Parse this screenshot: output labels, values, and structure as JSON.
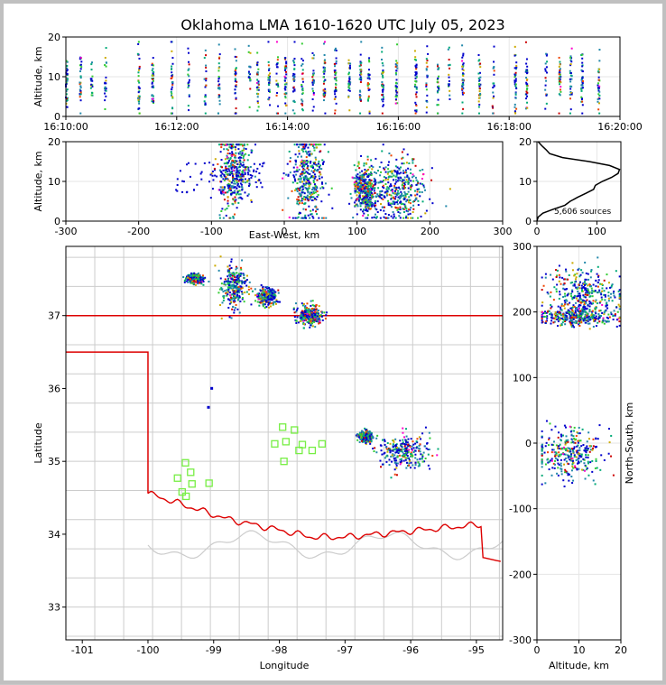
{
  "figure": {
    "title": "Oklahoma LMA 1610-1620 UTC July 05, 2023",
    "source_count_label": "5,606 sources"
  },
  "chart_data": [
    {
      "type": "scatter",
      "id": "altitude_time",
      "ylabel": "Altitude, km",
      "xlabel": "",
      "xlim": [
        "16:10:00",
        "16:20:00"
      ],
      "ylim": [
        0,
        20
      ],
      "x_ticks": [
        "16:10:00",
        "16:12:00",
        "16:14:00",
        "16:16:00",
        "16:18:00",
        "16:20:00"
      ],
      "y_ticks": [
        0,
        10,
        20
      ],
      "grid": true,
      "bursts_minutes": [
        0.0,
        0.25,
        0.45,
        0.7,
        1.3,
        1.55,
        1.9,
        2.2,
        2.5,
        2.75,
        3.05,
        3.3,
        3.45,
        3.65,
        3.8,
        3.95,
        4.1,
        4.25,
        4.45,
        4.65,
        4.85,
        5.1,
        5.3,
        5.45,
        5.7,
        5.95,
        6.3,
        6.5,
        6.7,
        6.9,
        7.15,
        7.45,
        7.7,
        8.1,
        8.3,
        8.65,
        8.9,
        9.1,
        9.3,
        9.6
      ]
    },
    {
      "type": "scatter",
      "id": "altitude_eastwest",
      "xlabel": "East-West, km",
      "ylabel": "Altitude, km",
      "xlim": [
        -300,
        300
      ],
      "ylim": [
        0,
        20
      ],
      "x_ticks": [
        -300,
        -200,
        -100,
        0,
        100,
        200,
        300
      ],
      "y_ticks": [
        0,
        10,
        20
      ],
      "clusters": [
        {
          "x": -70,
          "x_spread": 12,
          "alt": 12,
          "alt_spread": 5
        },
        {
          "x": 30,
          "x_spread": 12,
          "alt": 11,
          "alt_spread": 6
        },
        {
          "x": 155,
          "x_spread": 20,
          "alt": 8,
          "alt_spread": 4
        },
        {
          "x": 110,
          "x_spread": 8,
          "alt": 8,
          "alt_spread": 3
        }
      ]
    },
    {
      "type": "line",
      "id": "altitude_histogram",
      "xlim": [
        0,
        140
      ],
      "ylim": [
        0,
        20
      ],
      "x_ticks": [
        0,
        100
      ],
      "y_ticks": [
        0,
        10,
        20
      ],
      "alt": [
        0,
        1,
        2,
        3,
        4,
        5,
        6,
        7,
        8,
        9,
        10,
        11,
        12,
        13,
        14,
        15,
        16,
        17,
        18,
        19,
        20
      ],
      "count": [
        0,
        2,
        10,
        30,
        45,
        55,
        70,
        85,
        90,
        95,
        110,
        120,
        135,
        138,
        125,
        85,
        45,
        25,
        15,
        8,
        2
      ]
    },
    {
      "type": "scatter",
      "id": "plan_view",
      "xlabel": "Longitude",
      "ylabel": "Latitude",
      "xlim": [
        -101.25,
        -94.6
      ],
      "ylim": [
        32.55,
        37.95
      ],
      "x_ticks": [
        -101,
        -100,
        -99,
        -98,
        -97,
        -96,
        -95
      ],
      "y_ticks": [
        33,
        34,
        35,
        36,
        37
      ],
      "clusters": [
        {
          "lon": -98.7,
          "lat": 37.4,
          "slon": 0.1,
          "slat": 0.15
        },
        {
          "lon": -97.55,
          "lat": 37.02,
          "slon": 0.1,
          "slat": 0.07
        },
        {
          "lon": -99.3,
          "lat": 37.52,
          "slon": 0.07,
          "slat": 0.03
        },
        {
          "lon": -98.2,
          "lat": 37.28,
          "slon": 0.07,
          "slat": 0.06
        },
        {
          "lon": -96.1,
          "lat": 35.15,
          "slon": 0.2,
          "slat": 0.12
        },
        {
          "lon": -96.7,
          "lat": 35.35,
          "slon": 0.05,
          "slat": 0.04
        }
      ],
      "stations": [
        [
          -97.95,
          35.47
        ],
        [
          -97.77,
          35.43
        ],
        [
          -98.07,
          35.24
        ],
        [
          -97.9,
          35.27
        ],
        [
          -97.65,
          35.23
        ],
        [
          -97.35,
          35.24
        ],
        [
          -97.5,
          35.15
        ],
        [
          -97.7,
          35.15
        ],
        [
          -97.93,
          35.0
        ],
        [
          -99.43,
          34.98
        ],
        [
          -99.35,
          34.85
        ],
        [
          -99.55,
          34.77
        ],
        [
          -99.33,
          34.69
        ],
        [
          -99.07,
          34.7
        ],
        [
          -99.48,
          34.58
        ],
        [
          -99.42,
          34.52
        ]
      ]
    },
    {
      "type": "scatter",
      "id": "northsouth_altitude",
      "xlabel": "Altitude, km",
      "ylabel": "North-South, km",
      "xlim": [
        0,
        20
      ],
      "ylim": [
        -300,
        300
      ],
      "x_ticks": [
        0,
        10,
        20
      ],
      "y_ticks": [
        -300,
        -200,
        -100,
        0,
        100,
        200,
        300
      ],
      "clusters": [
        {
          "alt": 11,
          "ns": 230,
          "salt": 4,
          "sns": 20
        },
        {
          "alt": 9,
          "ns": 195,
          "salt": 5,
          "sns": 7
        },
        {
          "alt": 7,
          "ns": -15,
          "salt": 4,
          "sns": 18
        }
      ]
    }
  ],
  "colors": {
    "state_border": "#dd0000",
    "county_lines": "#cccccc",
    "station_marker": "#77ee44",
    "histogram_line": "#000000",
    "source_palette": [
      "#0000cc",
      "#2288aa",
      "#00aa77",
      "#33cc33",
      "#ccaa00",
      "#ee4400",
      "#cc0000",
      "#ff00cc"
    ]
  }
}
